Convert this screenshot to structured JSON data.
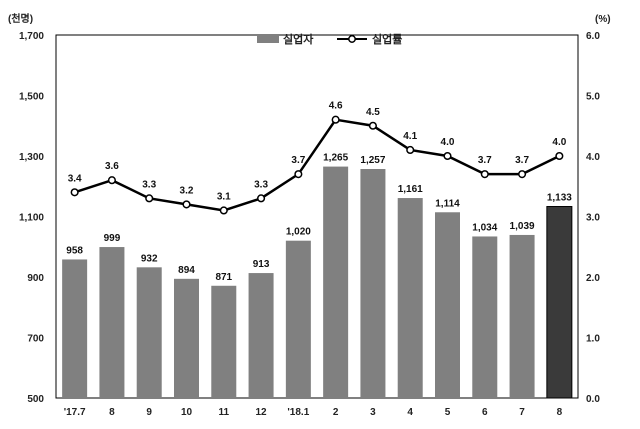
{
  "chart_data": {
    "type": "bar",
    "categories": [
      "'17.7",
      "8",
      "9",
      "10",
      "11",
      "12",
      "'18.1",
      "2",
      "3",
      "4",
      "5",
      "6",
      "7",
      "8"
    ],
    "y_unit_label": "(천명)",
    "y2_unit_label": "(%)",
    "y_ticks": [
      "500",
      "700",
      "900",
      "1,100",
      "1,300",
      "1,500",
      "1,700"
    ],
    "y2_ticks": [
      "0.0",
      "1.0",
      "2.0",
      "3.0",
      "4.0",
      "5.0",
      "6.0"
    ],
    "ylim": [
      500,
      1700
    ],
    "y2lim": [
      0,
      6
    ],
    "legend_position": "top-center",
    "series": [
      {
        "name": "실업자",
        "type": "bar",
        "axis": "left",
        "values": [
          958,
          999,
          932,
          894,
          871,
          913,
          1020,
          1265,
          1257,
          1161,
          1114,
          1034,
          1039,
          1133
        ],
        "labels": [
          "958",
          "999",
          "932",
          "894",
          "871",
          "913",
          "1,020",
          "1,265",
          "1,257",
          "1,161",
          "1,114",
          "1,034",
          "1,039",
          "1,133"
        ],
        "color": "#808080",
        "highlight_color": "#3a3a3a",
        "highlight_index": 13
      },
      {
        "name": "실업률",
        "type": "line",
        "axis": "right",
        "values": [
          3.4,
          3.6,
          3.3,
          3.2,
          3.1,
          3.3,
          3.7,
          4.6,
          4.5,
          4.1,
          4.0,
          3.7,
          3.7,
          4.0
        ],
        "labels": [
          "3.4",
          "3.6",
          "3.3",
          "3.2",
          "3.1",
          "3.3",
          "3.7",
          "4.6",
          "4.5",
          "4.1",
          "4.0",
          "3.7",
          "3.7",
          "4.0"
        ],
        "color": "#000000"
      }
    ]
  }
}
